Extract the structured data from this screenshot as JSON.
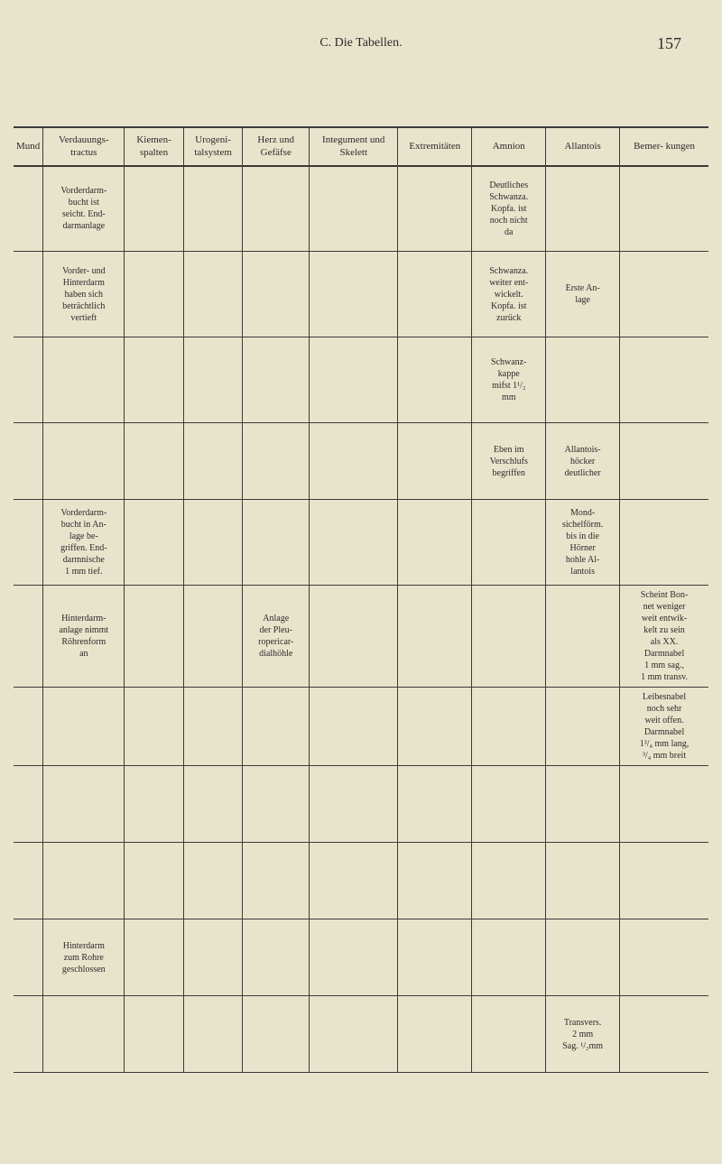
{
  "header": {
    "title": "C. Die Tabellen.",
    "page_number": "157"
  },
  "table": {
    "columns": [
      "Mund",
      "Verdauungs-\ntractus",
      "Kiemen-\nspalten",
      "Urogeni-\ntalsystem",
      "Herz und\nGefäfse",
      "Integument und\nSkelett",
      "Extremitäten",
      "Amnion",
      "Allantois",
      "Bemer-\nkungen"
    ],
    "rows": [
      {
        "mund": "",
        "verdau": "Vorderdarm-\nbucht ist\nseicht. End-\ndarmanlage",
        "kiemen": "",
        "urogeni": "",
        "herz": "",
        "integ": "",
        "extrem": "",
        "amnion": "Deutliches\nSchwanza.\nKopfa. ist\nnoch nicht\nda",
        "allan": "",
        "bemer": ""
      },
      {
        "mund": "",
        "verdau": "Vorder- und\nHinterdarm\nhaben sich\nbeträchtlich\nvertieft",
        "kiemen": "",
        "urogeni": "",
        "herz": "",
        "integ": "",
        "extrem": "",
        "amnion": "Schwanza.\nweiter ent-\nwickelt.\nKopfa. ist\nzurück",
        "allan": "Erste An-\nlage",
        "bemer": ""
      },
      {
        "mund": "",
        "verdau": "",
        "kiemen": "",
        "urogeni": "",
        "herz": "",
        "integ": "",
        "extrem": "",
        "amnion": "Schwanz-\nkappe\nmifst 1¹/₂\nmm",
        "allan": "",
        "bemer": ""
      },
      {
        "mund": "",
        "verdau": "",
        "kiemen": "",
        "urogeni": "",
        "herz": "",
        "integ": "",
        "extrem": "",
        "amnion": "Eben im\nVerschlufs\nbegriffen",
        "allan": "Allantois-\nhöcker\ndeutlicher",
        "bemer": ""
      },
      {
        "mund": "",
        "verdau": "Vorderdarm-\nbucht in An-\nlage be-\ngriffen. End-\ndarmnische\n1 mm tief.",
        "kiemen": "",
        "urogeni": "",
        "herz": "",
        "integ": "",
        "extrem": "",
        "amnion": "",
        "allan": "Mond-\nsichelförm.\nbis in die\nHörner\nhohle Al-\nlantois",
        "bemer": ""
      },
      {
        "mund": "",
        "verdau": "Hinterdarm-\nanlage nimmt\nRöhrenform\nan",
        "kiemen": "",
        "urogeni": "",
        "herz": "Anlage\nder Pleu-\nropericar-\ndialhöhle",
        "integ": "",
        "extrem": "",
        "amnion": "",
        "allan": "",
        "bemer": "Scheint Bon-\nnet weniger\nweit entwik-\nkelt zu sein\nals XX.\nDarmnabel\n1 mm sag.,\n1 mm transv."
      },
      {
        "mund": "",
        "verdau": "",
        "kiemen": "",
        "urogeni": "",
        "herz": "",
        "integ": "",
        "extrem": "",
        "amnion": "",
        "allan": "",
        "bemer": "Leibesnabel\nnoch sehr\nweit offen.\nDarmnabel\n1³/₄ mm lang,\n³/₄ mm breit"
      },
      {
        "mund": "",
        "verdau": "",
        "kiemen": "",
        "urogeni": "",
        "herz": "",
        "integ": "",
        "extrem": "",
        "amnion": "",
        "allan": "",
        "bemer": ""
      },
      {
        "mund": "",
        "verdau": "",
        "kiemen": "",
        "urogeni": "",
        "herz": "",
        "integ": "",
        "extrem": "",
        "amnion": "",
        "allan": "",
        "bemer": ""
      },
      {
        "mund": "",
        "verdau": "Hinterdarm\nzum Rohre\ngeschlossen",
        "kiemen": "",
        "urogeni": "",
        "herz": "",
        "integ": "",
        "extrem": "",
        "amnion": "",
        "allan": "",
        "bemer": ""
      },
      {
        "mund": "",
        "verdau": "",
        "kiemen": "",
        "urogeni": "",
        "herz": "",
        "integ": "",
        "extrem": "",
        "amnion": "",
        "allan": "Transvers.\n2 mm\nSag. ¹/₂mm",
        "bemer": ""
      }
    ]
  },
  "styling": {
    "background_color": "#e8e4cc",
    "text_color": "#2a2a2a",
    "border_color": "#3a3a3a",
    "header_fontsize": 14,
    "page_number_fontsize": 18,
    "th_fontsize": 11,
    "td_fontsize": 10
  }
}
